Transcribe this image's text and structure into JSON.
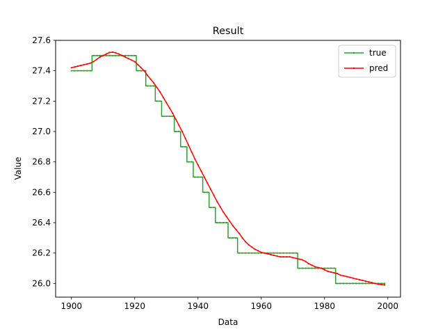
{
  "chart_data": {
    "type": "line",
    "title": "Result",
    "xlabel": "Data",
    "ylabel": "Value",
    "xlim": [
      1895,
      2004
    ],
    "ylim": [
      25.91,
      27.6
    ],
    "xticks": [
      1900,
      1920,
      1940,
      1960,
      1980,
      2000
    ],
    "yticks": [
      26.0,
      26.2,
      26.4,
      26.6,
      26.8,
      27.0,
      27.2,
      27.4,
      27.6
    ],
    "xtick_labels": [
      "1900",
      "1920",
      "1940",
      "1960",
      "1980",
      "2000"
    ],
    "ytick_labels": [
      "26.0",
      "26.2",
      "26.4",
      "26.6",
      "26.8",
      "27.0",
      "27.2",
      "27.4",
      "27.6"
    ],
    "grid": false,
    "legend_position": "top-right",
    "series": [
      {
        "name": "true",
        "color": "#2ca02c",
        "style": "step",
        "x": [
          1900,
          1901,
          1902,
          1903,
          1904,
          1905,
          1906,
          1907,
          1908,
          1909,
          1910,
          1911,
          1912,
          1913,
          1914,
          1915,
          1916,
          1917,
          1918,
          1919,
          1920,
          1921,
          1922,
          1923,
          1924,
          1925,
          1926,
          1927,
          1928,
          1929,
          1930,
          1931,
          1932,
          1933,
          1934,
          1935,
          1936,
          1937,
          1938,
          1939,
          1940,
          1941,
          1942,
          1943,
          1944,
          1945,
          1946,
          1947,
          1948,
          1949,
          1950,
          1951,
          1952,
          1953,
          1954,
          1955,
          1956,
          1957,
          1958,
          1959,
          1960,
          1961,
          1962,
          1963,
          1964,
          1965,
          1966,
          1967,
          1968,
          1969,
          1970,
          1971,
          1972,
          1973,
          1974,
          1975,
          1976,
          1977,
          1978,
          1979,
          1980,
          1981,
          1982,
          1983,
          1984,
          1985,
          1986,
          1987,
          1988,
          1989,
          1990,
          1991,
          1992,
          1993,
          1994,
          1995,
          1996,
          1997,
          1998,
          1999
        ],
        "y": [
          27.4,
          27.4,
          27.4,
          27.4,
          27.4,
          27.4,
          27.4,
          27.5,
          27.5,
          27.5,
          27.5,
          27.5,
          27.5,
          27.5,
          27.5,
          27.5,
          27.5,
          27.5,
          27.5,
          27.5,
          27.5,
          27.4,
          27.4,
          27.4,
          27.3,
          27.3,
          27.3,
          27.2,
          27.2,
          27.1,
          27.1,
          27.1,
          27.1,
          27.0,
          27.0,
          26.9,
          26.9,
          26.8,
          26.8,
          26.7,
          26.7,
          26.7,
          26.6,
          26.6,
          26.5,
          26.5,
          26.4,
          26.4,
          26.4,
          26.4,
          26.3,
          26.3,
          26.3,
          26.2,
          26.2,
          26.2,
          26.2,
          26.2,
          26.2,
          26.2,
          26.2,
          26.2,
          26.2,
          26.2,
          26.2,
          26.2,
          26.2,
          26.2,
          26.2,
          26.2,
          26.2,
          26.2,
          26.1,
          26.1,
          26.1,
          26.1,
          26.1,
          26.1,
          26.1,
          26.1,
          26.1,
          26.1,
          26.1,
          26.1,
          26.0,
          26.0,
          26.0,
          26.0,
          26.0,
          26.0,
          26.0,
          26.0,
          26.0,
          26.0,
          26.0,
          26.0,
          26.0,
          26.0,
          26.0,
          26.0
        ]
      },
      {
        "name": "pred",
        "color": "#ff0000",
        "style": "line",
        "x": [
          1900,
          1901,
          1902,
          1903,
          1904,
          1905,
          1906,
          1907,
          1908,
          1909,
          1910,
          1911,
          1912,
          1913,
          1914,
          1915,
          1916,
          1917,
          1918,
          1919,
          1920,
          1921,
          1922,
          1923,
          1924,
          1925,
          1926,
          1927,
          1928,
          1929,
          1930,
          1931,
          1932,
          1933,
          1934,
          1935,
          1936,
          1937,
          1938,
          1939,
          1940,
          1941,
          1942,
          1943,
          1944,
          1945,
          1946,
          1947,
          1948,
          1949,
          1950,
          1951,
          1952,
          1953,
          1954,
          1955,
          1956,
          1957,
          1958,
          1959,
          1960,
          1961,
          1962,
          1963,
          1964,
          1965,
          1966,
          1967,
          1968,
          1969,
          1970,
          1971,
          1972,
          1973,
          1974,
          1975,
          1976,
          1977,
          1978,
          1979,
          1980,
          1981,
          1982,
          1983,
          1984,
          1985,
          1986,
          1987,
          1988,
          1989,
          1990,
          1991,
          1992,
          1993,
          1994,
          1995,
          1996,
          1997,
          1998,
          1999
        ],
        "y": [
          27.42,
          27.425,
          27.43,
          27.435,
          27.44,
          27.445,
          27.45,
          27.46,
          27.475,
          27.49,
          27.5,
          27.51,
          27.52,
          27.522,
          27.518,
          27.51,
          27.5,
          27.49,
          27.48,
          27.47,
          27.46,
          27.44,
          27.42,
          27.4,
          27.37,
          27.345,
          27.32,
          27.29,
          27.26,
          27.225,
          27.19,
          27.155,
          27.12,
          27.08,
          27.04,
          27.0,
          26.955,
          26.91,
          26.865,
          26.82,
          26.78,
          26.74,
          26.7,
          26.66,
          26.62,
          26.58,
          26.54,
          26.505,
          26.47,
          26.44,
          26.41,
          26.38,
          26.355,
          26.33,
          26.3,
          26.275,
          26.255,
          26.24,
          26.225,
          26.215,
          26.205,
          26.2,
          26.195,
          26.19,
          26.185,
          26.18,
          26.175,
          26.175,
          26.175,
          26.175,
          26.17,
          26.165,
          26.16,
          26.155,
          26.145,
          26.13,
          26.12,
          26.11,
          26.105,
          26.1,
          26.09,
          26.08,
          26.075,
          26.07,
          26.065,
          26.055,
          26.05,
          26.045,
          26.04,
          26.035,
          26.03,
          26.025,
          26.02,
          26.015,
          26.01,
          26.005,
          26.0,
          25.995,
          25.992,
          25.99
        ]
      }
    ]
  }
}
